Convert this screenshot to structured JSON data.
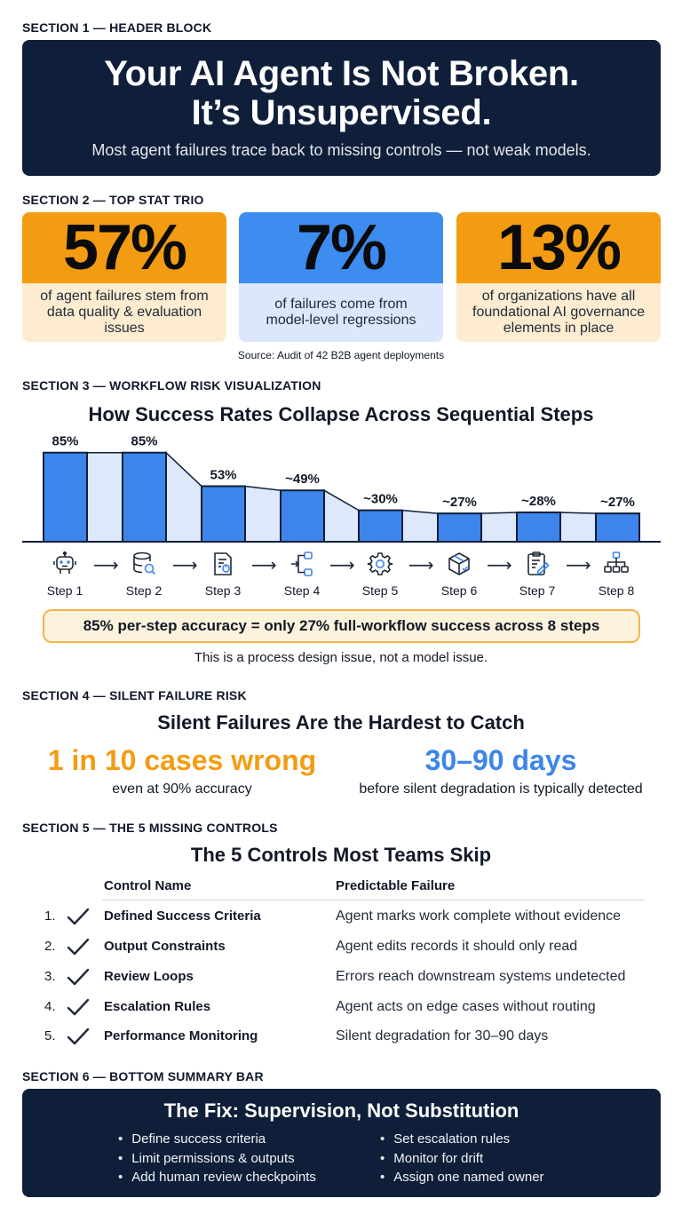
{
  "sections": {
    "s1": "SECTION 1 — HEADER BLOCK",
    "s2": "SECTION 2 — TOP STAT TRIO",
    "s3": "SECTION 3 — WORKFLOW RISK VISUALIZATION",
    "s4": "SECTION 4 — SILENT FAILURE RISK",
    "s5": "SECTION 5 — THE 5 MISSING CONTROLS",
    "s6": "SECTION 6 — BOTTOM SUMMARY BAR"
  },
  "header": {
    "title_line1": "Your AI Agent Is Not Broken.",
    "title_line2": "It’s Unsupervised.",
    "subtitle": "Most agent failures trace back to missing controls — not weak models."
  },
  "stats": [
    {
      "value": "57%",
      "text": "of agent failures stem from data quality & evaluation issues"
    },
    {
      "value": "7%",
      "text": "of failures come from model-level regressions"
    },
    {
      "value": "13%",
      "text": "of organizations have all foundational AI governance elements in place"
    }
  ],
  "stats_source": "Source: Audit of 42 B2B agent deployments",
  "chart_data": {
    "type": "bar",
    "title": "How Success Rates Collapse Across Sequential Steps",
    "categories": [
      "Step 1",
      "Step 2",
      "Step 3",
      "Step 4",
      "Step 5",
      "Step 6",
      "Step 7",
      "Step 8"
    ],
    "values": [
      85,
      85,
      53,
      49,
      30,
      27,
      28,
      27
    ],
    "labels": [
      "85%",
      "85%",
      "53%",
      "~49%",
      "~30%",
      "~27%",
      "~28%",
      "~27%"
    ],
    "colors": {
      "bar": "#3d85ea",
      "connector": "#dde8fb",
      "stroke": "#0f1f3a"
    }
  },
  "steps": [
    {
      "label": "Step 1",
      "icon": "robot-icon"
    },
    {
      "label": "Step 2",
      "icon": "database-search-icon"
    },
    {
      "label": "Step 3",
      "icon": "document-icon"
    },
    {
      "label": "Step 4",
      "icon": "workflow-branch-icon"
    },
    {
      "label": "Step 5",
      "icon": "gear-icon"
    },
    {
      "label": "Step 6",
      "icon": "package-icon"
    },
    {
      "label": "Step 7",
      "icon": "clipboard-edit-icon"
    },
    {
      "label": "Step 8",
      "icon": "org-chart-icon"
    }
  ],
  "callout": "85% per-step accuracy = only 27% full-workflow success across 8 steps",
  "callout_note": "This is a process design issue, not a model issue.",
  "silent": {
    "title": "Silent Failures Are the Hardest to Catch",
    "left_big": "1 in 10 cases wrong",
    "left_sub": "even at 90% accuracy",
    "right_big": "30–90 days",
    "right_sub": "before silent degradation is typically detected",
    "left_color": "#f39c12",
    "right_color": "#3d85ea"
  },
  "controls": {
    "title": "The 5 Controls Most Teams Skip",
    "header_name": "Control Name",
    "header_failure": "Predictable Failure",
    "rows": [
      {
        "num": "1.",
        "name": "Defined Success Criteria",
        "failure": "Agent marks work complete without evidence"
      },
      {
        "num": "2.",
        "name": "Output Constraints",
        "failure": "Agent edits records it should only read"
      },
      {
        "num": "3.",
        "name": "Review Loops",
        "failure": "Errors reach downstream systems undetected"
      },
      {
        "num": "4.",
        "name": "Escalation Rules",
        "failure": "Agent acts on edge cases without routing"
      },
      {
        "num": "5.",
        "name": "Performance Monitoring",
        "failure": "Silent degradation for 30–90 days"
      }
    ]
  },
  "fix": {
    "title": "The Fix: Supervision, Not Substitution",
    "left": [
      "Define success criteria",
      "Limit permissions & outputs",
      "Add human review checkpoints"
    ],
    "right": [
      "Set escalation rules",
      "Monitor for drift",
      "Assign one named owner"
    ]
  }
}
